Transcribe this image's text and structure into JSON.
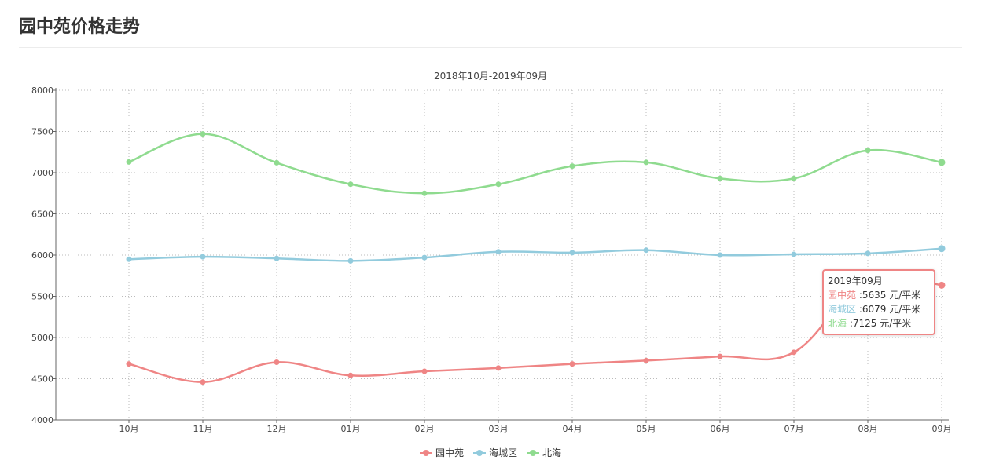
{
  "page": {
    "title": "园中苑价格走势"
  },
  "chart_data": {
    "type": "line",
    "title": "",
    "subtitle": "2018年10月-2019年09月",
    "categories": [
      "10月",
      "11月",
      "12月",
      "01月",
      "02月",
      "03月",
      "04月",
      "05月",
      "06月",
      "07月",
      "08月",
      "09月"
    ],
    "ylim": [
      4000,
      8000
    ],
    "yticks": [
      "4000",
      "4500",
      "5000",
      "5500",
      "6000",
      "6500",
      "7000",
      "7500",
      "8000"
    ],
    "grid": true,
    "legend_placement": "bottom-center",
    "series": [
      {
        "name": "园中苑",
        "color": "#ef8585",
        "values": [
          4680,
          4460,
          4700,
          4540,
          4590,
          4630,
          4680,
          4720,
          4770,
          4820,
          5720,
          5635
        ]
      },
      {
        "name": "海城区",
        "color": "#92cbdd",
        "values": [
          5950,
          5980,
          5960,
          5930,
          5970,
          6040,
          6030,
          6060,
          6000,
          6010,
          6020,
          6079
        ]
      },
      {
        "name": "北海",
        "color": "#8fdb8f",
        "values": [
          7130,
          7470,
          7120,
          6860,
          6750,
          6860,
          7080,
          7125,
          6930,
          6930,
          7270,
          7125
        ]
      }
    ]
  },
  "tooltip": {
    "header": "2019年09月",
    "rows": [
      {
        "name": "园中苑",
        "sep": " :",
        "value": "5635 元/平米"
      },
      {
        "name": "海城区",
        "sep": " :",
        "value": "6079 元/平米"
      },
      {
        "name": "北海",
        "sep": " :",
        "value": "7125 元/平米"
      }
    ]
  }
}
